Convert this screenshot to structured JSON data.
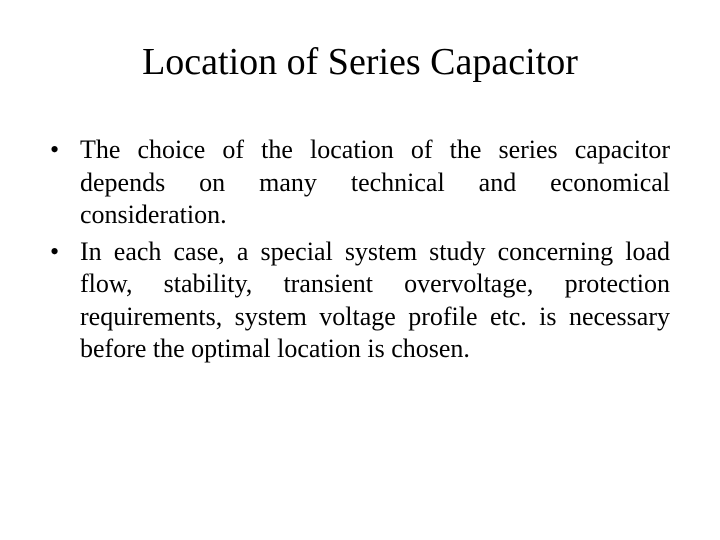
{
  "slide": {
    "title": "Location of Series Capacitor",
    "bullets": [
      {
        "text": "The choice of the location of the series capacitor depends on many technical and economical consideration."
      },
      {
        "text": "In each case, a special system study concerning load flow, stability, transient overvoltage, protection requirements, system voltage profile etc. is necessary before the optimal location is chosen."
      }
    ],
    "styling": {
      "background_color": "#ffffff",
      "text_color": "#000000",
      "title_fontsize": 38,
      "body_fontsize": 26,
      "font_family": "Times New Roman",
      "bullet_marker": "•"
    }
  }
}
